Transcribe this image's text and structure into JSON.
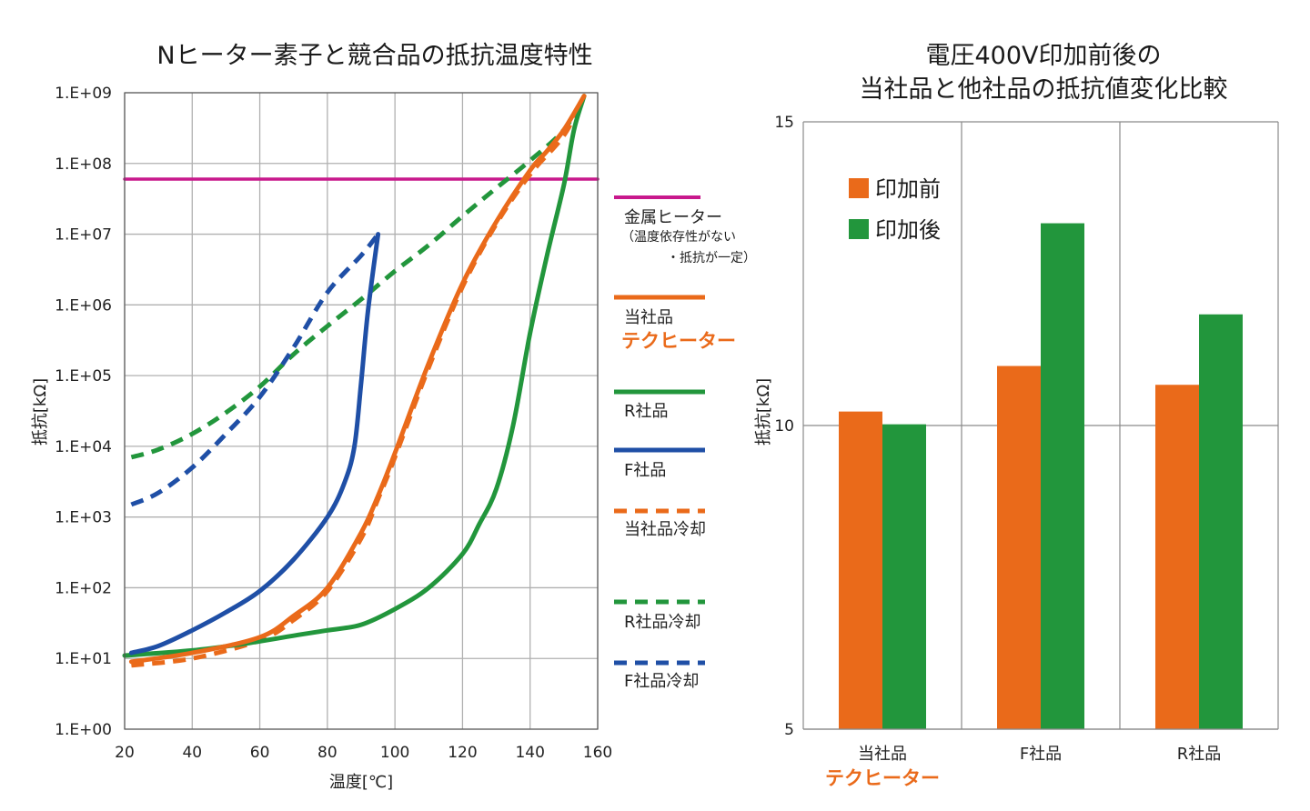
{
  "chart_data": [
    {
      "type": "line",
      "title": "Nヒーター素子と競合品の抵抗温度特性",
      "xlabel": "温度[℃]",
      "ylabel": "抵抗[kΩ]",
      "xlim": [
        20,
        160
      ],
      "ylim": [
        1,
        1000000000
      ],
      "yscale": "log",
      "grid": true,
      "legend_position": "right",
      "x_ticks": [
        "20",
        "40",
        "60",
        "80",
        "100",
        "120",
        "140",
        "160"
      ],
      "y_ticks": [
        "1.E+00",
        "1.E+01",
        "1.E+02",
        "1.E+03",
        "1.E+04",
        "1.E+05",
        "1.E+06",
        "1.E+07",
        "1.E+08",
        "1.E+09"
      ],
      "series": [
        {
          "key": "metal",
          "color": "#c8188c",
          "dash": false,
          "x": [
            20,
            160
          ],
          "y": [
            60000000,
            60000000
          ]
        },
        {
          "key": "ours",
          "color": "#ea6a1a",
          "dash": false,
          "x": [
            22,
            40,
            60,
            70,
            80,
            90,
            95,
            100,
            110,
            120,
            130,
            140,
            145,
            150,
            156
          ],
          "y": [
            9,
            12,
            20,
            40,
            100,
            600,
            2000,
            8000,
            150000,
            2000000,
            15000000,
            80000000,
            150000000,
            300000000,
            900000000
          ]
        },
        {
          "key": "r",
          "color": "#22963c",
          "dash": false,
          "x": [
            20,
            40,
            55,
            70,
            80,
            90,
            100,
            110,
            120,
            125,
            130,
            135,
            140,
            145,
            150,
            153,
            156
          ],
          "y": [
            11,
            13,
            16,
            21,
            25,
            30,
            50,
            100,
            300,
            800,
            2500,
            20000,
            400000,
            5000000,
            50000000,
            300000000,
            900000000
          ]
        },
        {
          "key": "f",
          "color": "#1f4fa6",
          "dash": false,
          "x": [
            22,
            30,
            40,
            50,
            60,
            70,
            80,
            85,
            88,
            90,
            92,
            95
          ],
          "y": [
            12,
            15,
            25,
            45,
            90,
            250,
            1000,
            3000,
            10000,
            80000,
            800000,
            10000000
          ]
        },
        {
          "key": "ours_cool",
          "color": "#ea6a1a",
          "dash": "14,9",
          "x": [
            22,
            40,
            60,
            70,
            80,
            90,
            95,
            100,
            110,
            120,
            130,
            140,
            150,
            156
          ],
          "y": [
            8,
            10,
            18,
            35,
            90,
            500,
            1800,
            7000,
            130000,
            1800000,
            14000000,
            70000000,
            250000000,
            900000000
          ]
        },
        {
          "key": "r_cool",
          "color": "#22963c",
          "dash": "14,9",
          "x": [
            22,
            30,
            40,
            50,
            60,
            70,
            80,
            90,
            100,
            110,
            120,
            130,
            140,
            150,
            156
          ],
          "y": [
            7000,
            9000,
            15000,
            30000,
            70000,
            200000,
            500000,
            1200000,
            3000000,
            7000000,
            18000000,
            45000000,
            110000000,
            300000000,
            900000000
          ]
        },
        {
          "key": "f_cool",
          "color": "#1f4fa6",
          "dash": "14,9",
          "x": [
            22,
            30,
            40,
            50,
            60,
            70,
            80,
            90,
            95
          ],
          "y": [
            1500,
            2200,
            5000,
            15000,
            50000,
            250000,
            1500000,
            5000000,
            10000000
          ]
        }
      ]
    },
    {
      "type": "bar",
      "title_lines": [
        "電圧400V印加前後の",
        "当社品と他社品の抵抗値変化比較"
      ],
      "ylabel": "抵抗[kΩ]",
      "ylim": [
        5,
        15
      ],
      "y_ticks": [
        "5",
        "10",
        "15"
      ],
      "grid": true,
      "legend_position": "top-left",
      "categories": [
        "当社品",
        "F社品",
        "R社品"
      ],
      "category_sub": [
        "テクヒーター",
        "",
        ""
      ],
      "series": [
        {
          "name": "印加前",
          "color": "#ea6a1a",
          "values": [
            10.23,
            10.98,
            10.67
          ]
        },
        {
          "name": "印加後",
          "color": "#22963c",
          "values": [
            10.02,
            13.33,
            11.83
          ]
        }
      ]
    }
  ],
  "legend_left": {
    "metal": {
      "label": "金属ヒーター",
      "note1": "（温度依存性がない",
      "note2": "・抵抗が一定）"
    },
    "ours": {
      "label": "当社品",
      "brand": "テクヒーター"
    },
    "r": {
      "label": "R社品"
    },
    "f": {
      "label": "F社品"
    },
    "ours_cool": {
      "label": "当社品冷却"
    },
    "r_cool": {
      "label": "R社品冷却"
    },
    "f_cool": {
      "label": "F社品冷却"
    }
  }
}
